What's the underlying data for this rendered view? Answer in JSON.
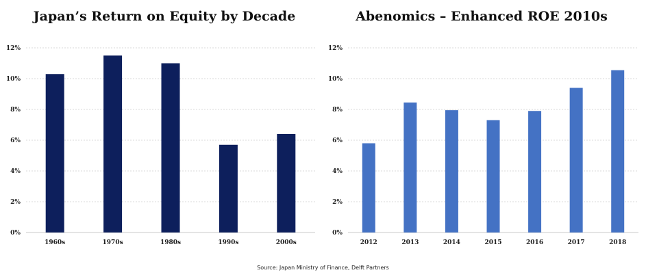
{
  "chart_data": [
    {
      "type": "bar",
      "title": "Japan’s Return on Equity by Decade",
      "categories": [
        "1960s",
        "1970s",
        "1980s",
        "1990s",
        "2000s"
      ],
      "values": [
        10.3,
        11.5,
        11.0,
        5.7,
        6.4
      ],
      "ylim": [
        0,
        12
      ],
      "yticks": [
        "0%",
        "2%",
        "4%",
        "6%",
        "8%",
        "10%",
        "12%"
      ],
      "bar_color": "#0d1f5c",
      "grid": true
    },
    {
      "type": "bar",
      "title": "Abenomics – Enhanced ROE 2010s",
      "categories": [
        "2012",
        "2013",
        "2014",
        "2015",
        "2016",
        "2017",
        "2018"
      ],
      "values": [
        5.8,
        8.45,
        7.95,
        7.3,
        7.9,
        9.4,
        10.55
      ],
      "ylim": [
        0,
        12
      ],
      "yticks": [
        "0%",
        "2%",
        "4%",
        "6%",
        "8%",
        "10%",
        "12%"
      ],
      "bar_color": "#4472c4",
      "grid": true
    }
  ],
  "footer": {
    "source": "Source: Japan Ministry of Finance, Delft Partners"
  }
}
